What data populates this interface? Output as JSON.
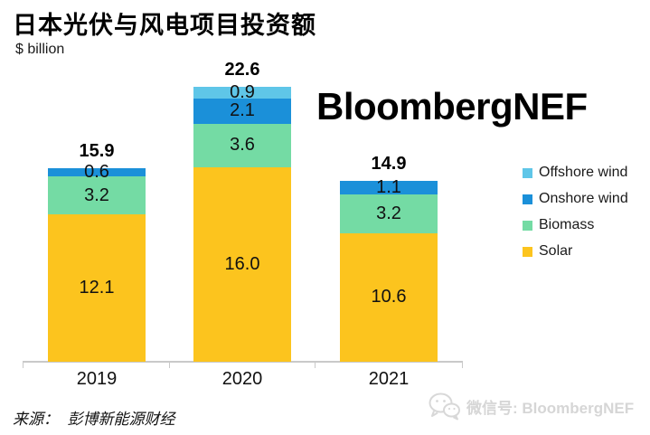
{
  "header": {
    "title": "日本光伏与风电项目投资额",
    "unit_label": "$ billion"
  },
  "watermark": {
    "brand": "BloombergNEF"
  },
  "chart_data": {
    "type": "bar",
    "stacked": true,
    "title": "日本光伏与风电项目投资额",
    "ylabel": "$ billion",
    "categories": [
      "2019",
      "2020",
      "2021"
    ],
    "series": [
      {
        "name": "Solar",
        "color": "#FCC41E",
        "values": [
          12.1,
          16.0,
          10.6
        ]
      },
      {
        "name": "Biomass",
        "color": "#74DBA4",
        "values": [
          3.2,
          3.6,
          3.2
        ]
      },
      {
        "name": "Onshore wind",
        "color": "#1B90D9",
        "values": [
          0.6,
          2.1,
          1.1
        ]
      },
      {
        "name": "Offshore wind",
        "color": "#5FC6E8",
        "values": [
          0,
          0.9,
          0
        ]
      }
    ],
    "totals": [
      15.9,
      22.6,
      14.9
    ],
    "legend_order": [
      "Offshore wind",
      "Onshore wind",
      "Biomass",
      "Solar"
    ],
    "legend_position": "right",
    "grid": false,
    "axis_color": "#C9C9C9",
    "ylim": [
      0,
      24
    ]
  },
  "footer": {
    "source": "来源：  彭博新能源财经",
    "wechat_label": "微信号: BloombergNEF"
  }
}
